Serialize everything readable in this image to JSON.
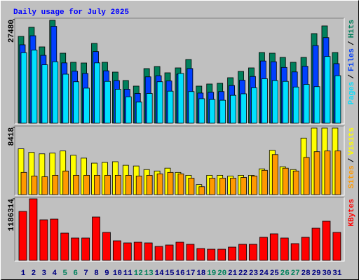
{
  "chart_data": [
    {
      "type": "bar",
      "title": "Daily usage for July 2025",
      "ylim": [
        0,
        27480
      ],
      "yticks": [
        27480
      ],
      "legend_separator": "/",
      "series": [
        {
          "name": "Pages",
          "color": "#00e0ff",
          "values": [
            18700,
            19400,
            15500,
            16300,
            13000,
            11000,
            9300,
            16000,
            11100,
            9000,
            7000,
            5600,
            7900,
            11000,
            8500,
            13200,
            8400,
            6500,
            6300,
            6100,
            7400,
            7800,
            9400,
            11800,
            11300,
            11100,
            9600,
            10300,
            9700,
            17700,
            12600
          ]
        },
        {
          "name": "Files",
          "color": "#0040ff",
          "values": [
            20800,
            23200,
            18000,
            25700,
            16000,
            13800,
            13200,
            19000,
            13900,
            11300,
            9000,
            7900,
            12300,
            12600,
            11200,
            13000,
            14500,
            8000,
            8200,
            8400,
            10000,
            11400,
            12400,
            16500,
            16300,
            14800,
            13600,
            15100,
            20600,
            22700,
            15800
          ]
        },
        {
          "name": "Hits",
          "color": "#00805c",
          "values": [
            23027,
            25441,
            20241,
            27298,
            18570,
            16156,
            15970,
            21170,
            16156,
            13556,
            11328,
            9842,
            14485,
            15042,
            13370,
            14670,
            16899,
            9842,
            10399,
            10585,
            12070,
            13742,
            14670,
            18756,
            18570,
            17456,
            16156,
            17456,
            23770,
            25812,
            18756
          ]
        }
      ]
    },
    {
      "type": "bar",
      "ylim": [
        0,
        8418
      ],
      "yticks": [
        8418
      ],
      "legend_separator": "/",
      "series": [
        {
          "name": "Sites",
          "color": "#ff9900",
          "values": [
            2778,
            2330,
            2240,
            2419,
            2957,
            2419,
            2419,
            2419,
            2419,
            2419,
            2419,
            2330,
            2419,
            2598,
            2778,
            2598,
            2061,
            986,
            2061,
            2061,
            2061,
            2150,
            2330,
            3046,
            5018,
            3315,
            2957,
            4659,
            5376,
            5466,
            5466
          ]
        },
        {
          "name": "Visits",
          "color": "#ffff00",
          "values": [
            5734,
            5286,
            5107,
            5197,
            5466,
            4928,
            4570,
            3942,
            4032,
            4122,
            3674,
            3584,
            3136,
            2957,
            3315,
            2778,
            2419,
            1254,
            2419,
            2419,
            2330,
            2419,
            2419,
            3226,
            5555,
            3494,
            3136,
            7078,
            8333,
            8333,
            8333
          ]
        }
      ]
    },
    {
      "type": "bar",
      "ylim": [
        0,
        1186314
      ],
      "yticks": [
        1186314
      ],
      "categories": [
        "1",
        "2",
        "3",
        "4",
        "5",
        "6",
        "7",
        "8",
        "9",
        "10",
        "11",
        "12",
        "13",
        "14",
        "15",
        "16",
        "17",
        "18",
        "19",
        "20",
        "21",
        "22",
        "23",
        "24",
        "25",
        "26",
        "27",
        "28",
        "29",
        "30",
        "31"
      ],
      "category_colors": [
        "#000080",
        "#000080",
        "#000080",
        "#000080",
        "#00805c",
        "#00805c",
        "#000080",
        "#000080",
        "#000080",
        "#000080",
        "#000080",
        "#00805c",
        "#00805c",
        "#000080",
        "#000080",
        "#000080",
        "#000080",
        "#000080",
        "#00805c",
        "#00805c",
        "#000080",
        "#000080",
        "#000080",
        "#000080",
        "#000080",
        "#00805c",
        "#00805c",
        "#000080",
        "#000080",
        "#000080",
        "#000080"
      ],
      "series": [
        {
          "name": "KBytes",
          "color": "#ff0000",
          "values": [
            943670,
            1186314,
            781898,
            795379,
            525759,
            431392,
            431392,
            835822,
            539240,
            377468,
            337025,
            350506,
            337025,
            269620,
            296582,
            350506,
            310063,
            229177,
            215696,
            215696,
            256139,
            310063,
            310063,
            444873,
            512278,
            431392,
            323544,
            444873,
            620126,
            754936,
            539240
          ]
        }
      ]
    }
  ]
}
